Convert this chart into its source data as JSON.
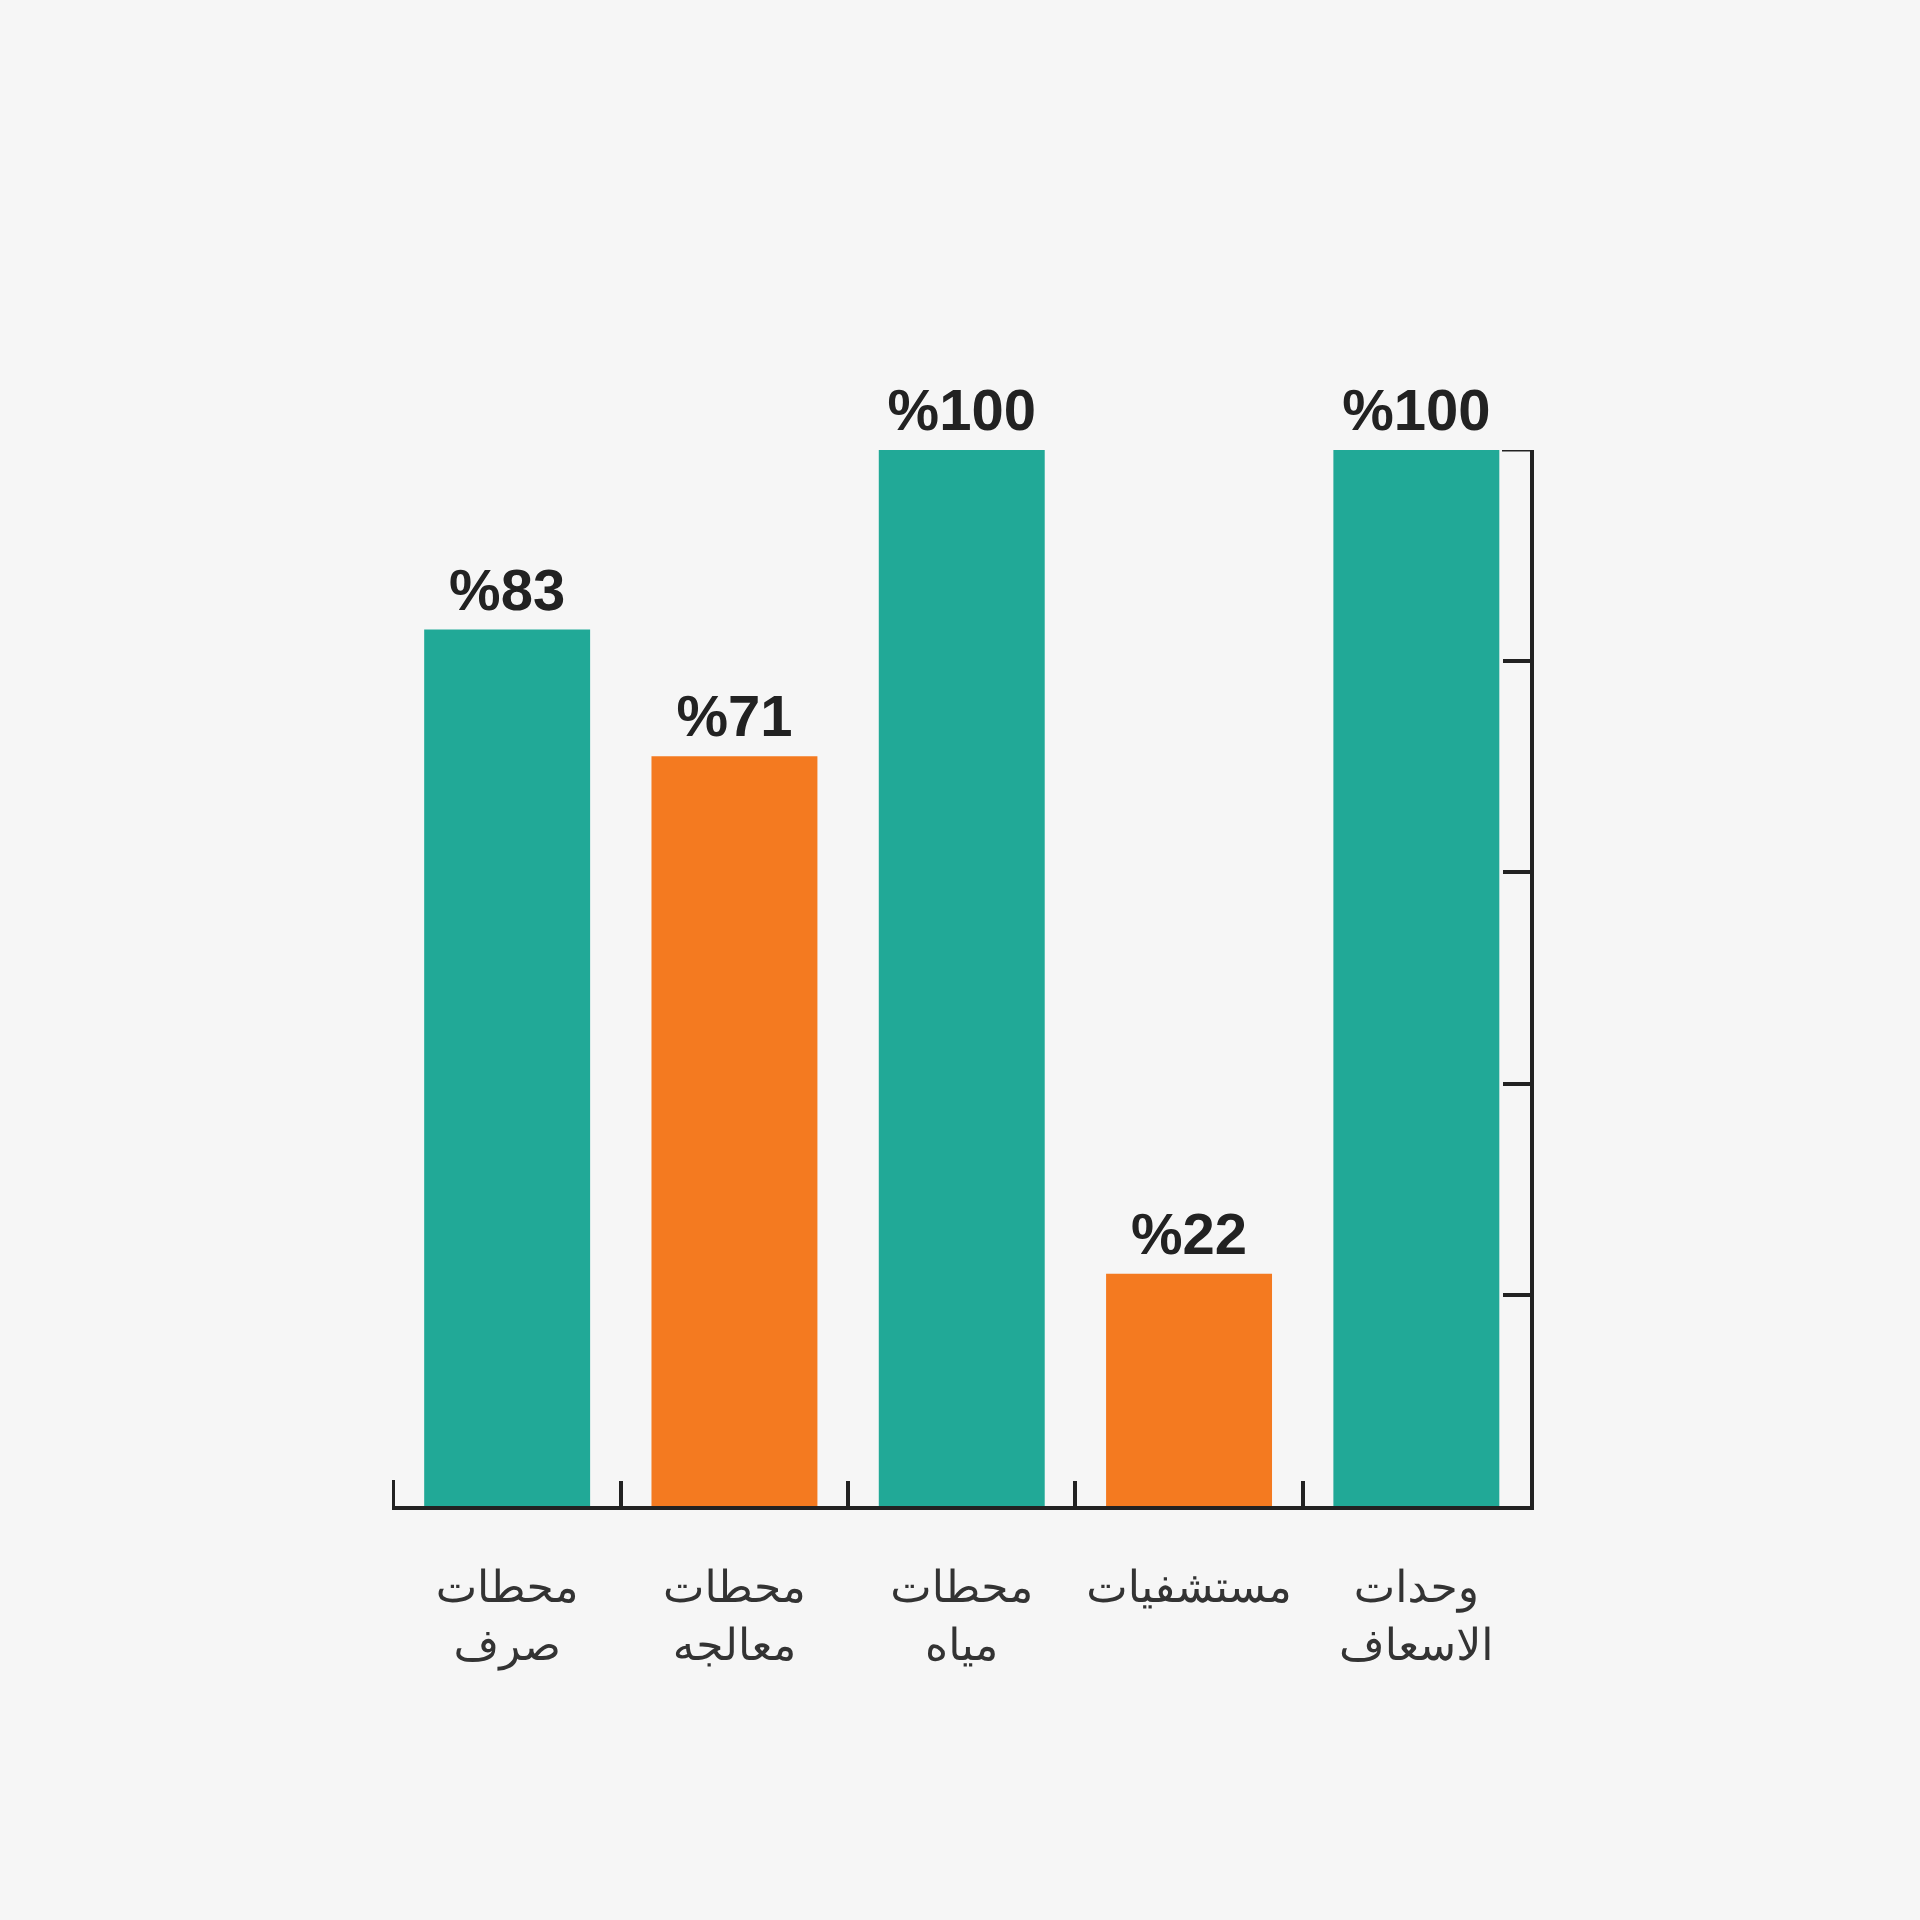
{
  "chart_data": {
    "type": "bar",
    "categories": [
      "محطات صرف",
      "محطات معالجه",
      "محطات مياه",
      "مستشفيات",
      "وحدات الاسعاف"
    ],
    "values": [
      83,
      71,
      100,
      22,
      100
    ],
    "colors": [
      "#21a997",
      "#f47a20",
      "#21a997",
      "#f47a20",
      "#21a997"
    ],
    "value_labels": [
      "%83",
      "%71",
      "%100",
      "%22",
      "%100"
    ],
    "ylim": [
      0,
      100
    ],
    "yticks": [
      {
        "value": 0,
        "label": null
      },
      {
        "value": 20,
        "label": null
      },
      {
        "value": 40,
        "label": null
      },
      {
        "value": 60,
        "label": null
      },
      {
        "value": 80,
        "label": null
      },
      {
        "value": 100,
        "label": null
      }
    ],
    "tick_labels": "x"
  }
}
